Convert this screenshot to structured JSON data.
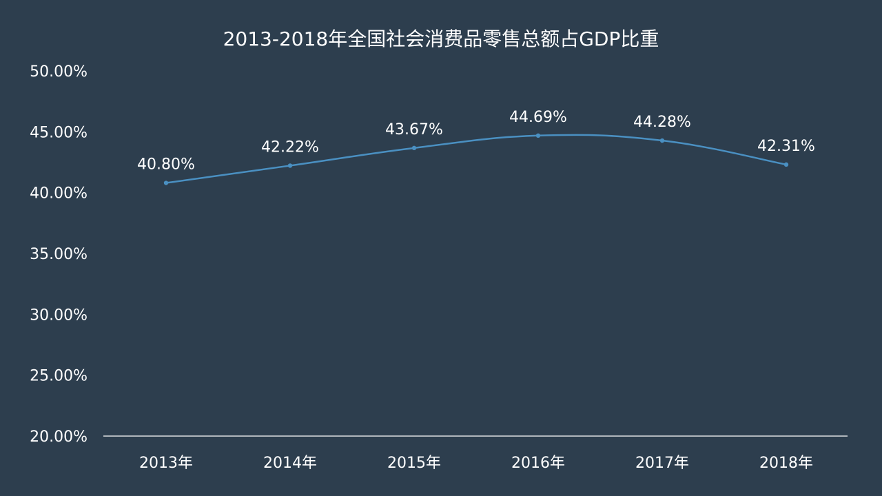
{
  "chart_data": {
    "type": "line",
    "title": "2013-2018年全国社会消费品零售总额占GDP比重",
    "categories": [
      "2013年",
      "2014年",
      "2015年",
      "2016年",
      "2017年",
      "2018年"
    ],
    "series": [
      {
        "values": [
          40.8,
          42.22,
          43.67,
          44.69,
          44.28,
          42.31
        ],
        "labels": [
          "40.80%",
          "42.22%",
          "43.67%",
          "44.69%",
          "44.28%",
          "42.31%"
        ]
      }
    ],
    "ylim": [
      20,
      50
    ],
    "yticks": [
      20,
      25,
      30,
      35,
      40,
      45,
      50
    ],
    "ytick_labels": [
      "20.00%",
      "25.00%",
      "30.00%",
      "35.00%",
      "40.00%",
      "45.00%",
      "50.00%"
    ],
    "grid": false,
    "legend": "none",
    "smooth": true,
    "colors": {
      "background": "#2d3e4e",
      "line": "#4a90c2",
      "text": "#ffffff",
      "axis": "#ffffff"
    }
  }
}
